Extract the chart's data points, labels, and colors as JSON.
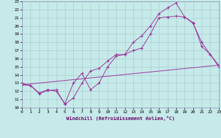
{
  "xlabel": "Windchill (Refroidissement éolien,°C)",
  "xlim": [
    0,
    23
  ],
  "ylim": [
    10,
    23
  ],
  "xticks": [
    0,
    1,
    2,
    3,
    4,
    5,
    6,
    7,
    8,
    9,
    10,
    11,
    12,
    13,
    14,
    15,
    16,
    17,
    18,
    19,
    20,
    21,
    22,
    23
  ],
  "yticks": [
    10,
    11,
    12,
    13,
    14,
    15,
    16,
    17,
    18,
    19,
    20,
    21,
    22,
    23
  ],
  "background_color": "#c6eaea",
  "line_color": "#993399",
  "grid_color": "#aacccc",
  "line1_x": [
    0,
    1,
    2,
    3,
    4,
    5,
    6,
    7,
    8,
    9,
    10,
    11,
    12,
    13,
    14,
    15,
    16,
    17,
    18,
    19,
    20,
    21,
    22,
    23
  ],
  "line1_y": [
    13.0,
    12.7,
    11.7,
    12.1,
    12.2,
    10.4,
    11.2,
    13.0,
    14.5,
    14.8,
    15.7,
    16.5,
    16.5,
    18.0,
    18.8,
    20.0,
    21.5,
    22.2,
    22.8,
    21.1,
    20.3,
    18.0,
    16.5,
    15.0
  ],
  "line2_x": [
    0,
    1,
    2,
    3,
    4,
    5,
    6,
    7,
    8,
    9,
    10,
    11,
    12,
    13,
    14,
    15,
    16,
    17,
    18,
    19,
    20,
    21,
    22,
    23
  ],
  "line2_y": [
    12.8,
    12.7,
    11.8,
    12.2,
    12.0,
    10.5,
    13.0,
    14.2,
    12.2,
    13.0,
    15.0,
    16.3,
    16.5,
    17.0,
    17.3,
    19.0,
    21.0,
    21.1,
    21.2,
    21.1,
    20.4,
    17.5,
    16.5,
    15.2
  ],
  "line3_x": [
    0,
    23
  ],
  "line3_y": [
    12.8,
    15.2
  ]
}
